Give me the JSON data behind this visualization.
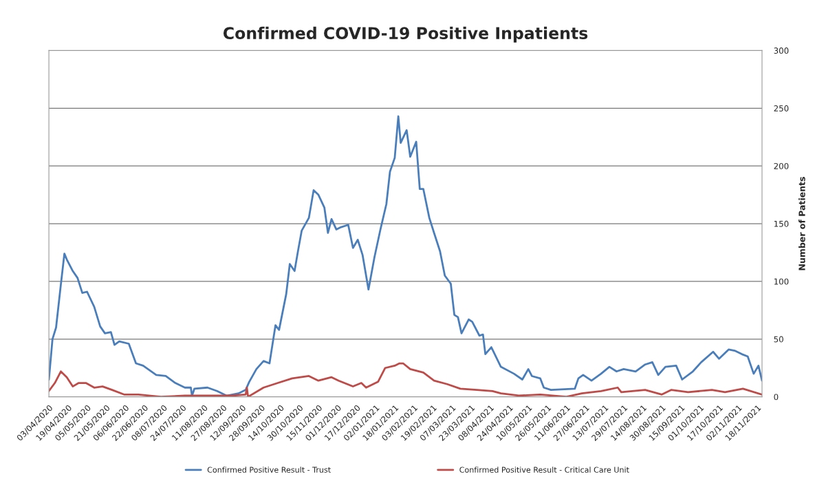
{
  "chart_data": {
    "type": "line",
    "title": "Confirmed COVID-19 Positive Inpatients",
    "ylabel": "Number of Patients",
    "xlim": [
      "2020-04-03",
      "2021-11-22"
    ],
    "ylim": [
      0,
      300
    ],
    "yticks": [
      0,
      50,
      100,
      150,
      200,
      250,
      300
    ],
    "xticks": [
      {
        "value": "2020-04-03",
        "label": "03/04/2020"
      },
      {
        "value": "2020-04-19",
        "label": "19/04/2020"
      },
      {
        "value": "2020-05-05",
        "label": "05/05/2020"
      },
      {
        "value": "2020-05-21",
        "label": "21/05/2020"
      },
      {
        "value": "2020-06-06",
        "label": "06/06/2020"
      },
      {
        "value": "2020-06-22",
        "label": "22/06/2020"
      },
      {
        "value": "2020-07-08",
        "label": "08/07/2020"
      },
      {
        "value": "2020-07-24",
        "label": "24/07/2020"
      },
      {
        "value": "2020-08-11",
        "label": "11/08/2020"
      },
      {
        "value": "2020-08-27",
        "label": "27/08/2020"
      },
      {
        "value": "2020-09-12",
        "label": "12/09/2020"
      },
      {
        "value": "2020-09-28",
        "label": "28/09/2020"
      },
      {
        "value": "2020-10-14",
        "label": "14/10/2020"
      },
      {
        "value": "2020-10-30",
        "label": "30/10/2020"
      },
      {
        "value": "2020-11-15",
        "label": "15/11/2020"
      },
      {
        "value": "2020-12-01",
        "label": "01/12/2020"
      },
      {
        "value": "2020-12-17",
        "label": "17/12/2020"
      },
      {
        "value": "2021-01-02",
        "label": "02/01/2021"
      },
      {
        "value": "2021-01-18",
        "label": "18/01/2021"
      },
      {
        "value": "2021-02-03",
        "label": "03/02/2021"
      },
      {
        "value": "2021-02-19",
        "label": "19/02/2021"
      },
      {
        "value": "2021-03-07",
        "label": "07/03/2021"
      },
      {
        "value": "2021-03-23",
        "label": "23/03/2021"
      },
      {
        "value": "2021-04-08",
        "label": "08/04/2021"
      },
      {
        "value": "2021-04-24",
        "label": "24/04/2021"
      },
      {
        "value": "2021-05-10",
        "label": "10/05/2021"
      },
      {
        "value": "2021-05-26",
        "label": "26/05/2021"
      },
      {
        "value": "2021-06-11",
        "label": "11/06/2021"
      },
      {
        "value": "2021-06-27",
        "label": "27/06/2021"
      },
      {
        "value": "2021-07-13",
        "label": "13/07/2021"
      },
      {
        "value": "2021-07-29",
        "label": "29/07/2021"
      },
      {
        "value": "2021-08-14",
        "label": "14/08/2021"
      },
      {
        "value": "2021-08-30",
        "label": "30/08/2021"
      },
      {
        "value": "2021-09-15",
        "label": "15/09/2021"
      },
      {
        "value": "2021-10-01",
        "label": "01/10/2021"
      },
      {
        "value": "2021-10-17",
        "label": "17/10/2021"
      },
      {
        "value": "2021-11-02",
        "label": "02/11/2021"
      },
      {
        "value": "2021-11-18",
        "label": "18/11/2021"
      }
    ],
    "grid": "y",
    "legend": "bottom",
    "marker": "none",
    "line_style": "solid",
    "series": [
      {
        "name": "Confirmed Positive Result - Trust",
        "color": "#4a7ebb",
        "x": [
          "2020-04-03",
          "2020-04-06",
          "2020-04-09",
          "2020-04-13",
          "2020-04-16",
          "2020-04-18",
          "2020-04-23",
          "2020-04-27",
          "2020-05-01",
          "2020-05-05",
          "2020-05-11",
          "2020-05-16",
          "2020-05-20",
          "2020-05-25",
          "2020-05-28",
          "2020-06-01",
          "2020-06-09",
          "2020-06-15",
          "2020-06-21",
          "2020-07-02",
          "2020-07-10",
          "2020-07-18",
          "2020-07-26",
          "2020-07-31",
          "2020-08-01",
          "2020-08-03",
          "2020-08-14",
          "2020-08-22",
          "2020-08-30",
          "2020-09-09",
          "2020-09-15",
          "2020-09-18",
          "2020-09-24",
          "2020-09-30",
          "2020-10-05",
          "2020-10-10",
          "2020-10-13",
          "2020-10-19",
          "2020-10-22",
          "2020-10-26",
          "2020-10-29",
          "2020-11-01",
          "2020-11-07",
          "2020-11-11",
          "2020-11-15",
          "2020-11-20",
          "2020-11-23",
          "2020-11-26",
          "2020-11-30",
          "2020-12-04",
          "2020-12-10",
          "2020-12-14",
          "2020-12-18",
          "2020-12-22",
          "2020-12-27",
          "2021-01-01",
          "2021-01-06",
          "2021-01-11",
          "2021-01-14",
          "2021-01-18",
          "2021-01-21",
          "2021-01-23",
          "2021-01-28",
          "2021-01-31",
          "2021-02-05",
          "2021-02-08",
          "2021-02-11",
          "2021-02-16",
          "2021-02-20",
          "2021-02-25",
          "2021-03-01",
          "2021-03-06",
          "2021-03-09",
          "2021-03-12",
          "2021-03-15",
          "2021-03-21",
          "2021-03-24",
          "2021-03-30",
          "2021-04-02",
          "2021-04-04",
          "2021-04-09",
          "2021-04-17",
          "2021-04-28",
          "2021-05-05",
          "2021-05-10",
          "2021-05-13",
          "2021-05-20",
          "2021-05-23",
          "2021-05-29",
          "2021-06-18",
          "2021-06-21",
          "2021-06-25",
          "2021-07-02",
          "2021-07-10",
          "2021-07-17",
          "2021-07-23",
          "2021-07-29",
          "2021-08-08",
          "2021-08-16",
          "2021-08-22",
          "2021-08-27",
          "2021-09-02",
          "2021-09-11",
          "2021-09-16",
          "2021-09-25",
          "2021-10-02",
          "2021-10-12",
          "2021-10-17",
          "2021-10-25",
          "2021-10-30",
          "2021-11-05",
          "2021-11-10",
          "2021-11-15",
          "2021-11-19",
          "2021-11-22"
        ],
        "values": [
          15,
          50,
          60,
          97,
          124,
          119,
          109,
          103,
          90,
          91,
          78,
          61,
          55,
          56,
          45,
          48,
          46,
          29,
          27,
          19,
          18,
          12,
          8,
          8,
          1,
          7,
          8,
          5,
          1,
          3,
          6,
          13,
          24,
          31,
          29,
          62,
          58,
          89,
          115,
          109,
          127,
          144,
          155,
          179,
          175,
          164,
          142,
          154,
          145,
          147,
          149,
          129,
          136,
          123,
          93,
          121,
          145,
          167,
          195,
          207,
          243,
          220,
          231,
          208,
          221,
          180,
          180,
          155,
          142,
          126,
          105,
          98,
          71,
          69,
          55,
          67,
          65,
          53,
          54,
          37,
          43,
          26,
          20,
          15,
          24,
          18,
          16,
          8,
          6,
          7,
          16,
          19,
          14,
          20,
          26,
          22,
          24,
          22,
          28,
          30,
          19,
          26,
          27,
          15,
          22,
          30,
          39,
          33,
          41,
          40,
          37,
          35,
          20,
          27,
          14
        ]
      },
      {
        "name": "Confirmed Positive Result - Critical Care Unit",
        "color": "#be4b48",
        "x": [
          "2020-04-03",
          "2020-04-08",
          "2020-04-13",
          "2020-04-18",
          "2020-04-23",
          "2020-04-28",
          "2020-05-04",
          "2020-05-11",
          "2020-05-18",
          "2020-05-26",
          "2020-06-05",
          "2020-06-17",
          "2020-07-06",
          "2020-07-26",
          "2020-08-14",
          "2020-09-03",
          "2020-09-15",
          "2020-09-16",
          "2020-09-17",
          "2020-09-30",
          "2020-10-12",
          "2020-10-24",
          "2020-11-07",
          "2020-11-15",
          "2020-11-26",
          "2020-12-02",
          "2020-12-14",
          "2020-12-21",
          "2020-12-25",
          "2021-01-04",
          "2021-01-10",
          "2021-01-18",
          "2021-01-22",
          "2021-01-25",
          "2021-01-31",
          "2021-02-11",
          "2021-02-20",
          "2021-03-03",
          "2021-03-14",
          "2021-03-28",
          "2021-04-10",
          "2021-04-17",
          "2021-05-02",
          "2021-05-20",
          "2021-06-11",
          "2021-06-24",
          "2021-07-10",
          "2021-07-24",
          "2021-07-27",
          "2021-08-16",
          "2021-08-30",
          "2021-09-07",
          "2021-09-21",
          "2021-10-11",
          "2021-10-22",
          "2021-11-06",
          "2021-11-22"
        ],
        "values": [
          5,
          12,
          22,
          17,
          9,
          12,
          12,
          8,
          9,
          6,
          2,
          2,
          0,
          1,
          1,
          1,
          2,
          8,
          0,
          8,
          12,
          16,
          18,
          14,
          17,
          14,
          9,
          12,
          8,
          13,
          25,
          27,
          29,
          29,
          24,
          21,
          14,
          11,
          7,
          6,
          5,
          3,
          1,
          2,
          0,
          3,
          5,
          8,
          4,
          6,
          2,
          6,
          4,
          6,
          4,
          7,
          2
        ]
      }
    ]
  }
}
